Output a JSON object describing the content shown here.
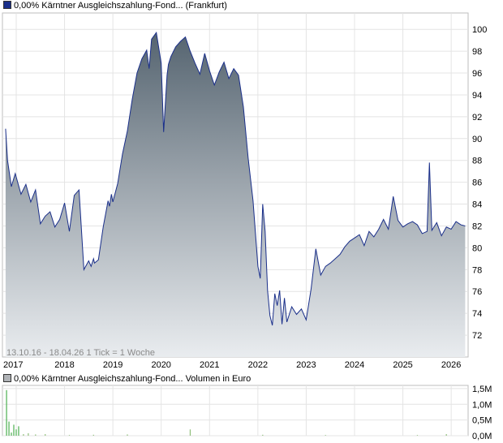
{
  "legend": {
    "price_label": "0,00% Kärntner Ausgleichszahlung-Fond... (Frankfurt)",
    "volume_label": "0,00% Kärntner Ausgleichszahlung-Fond... Volumen in Euro",
    "price_color": "#1a2f8a",
    "volume_color": "#b0b3b7"
  },
  "footer_note": "13.10.16 - 18.04.26   1 Tick = 1 Woche",
  "chart_data": [
    {
      "type": "area",
      "title": "0,00% Kärntner Ausgleichszahlung-Fond... (Frankfurt)",
      "x_ticks": [
        "2017",
        "2018",
        "2019",
        "2020",
        "2021",
        "2022",
        "2023",
        "2024",
        "2025",
        "2026"
      ],
      "y_ticks": [
        "72",
        "74",
        "76",
        "78",
        "80",
        "82",
        "84",
        "86",
        "88",
        "90",
        "92",
        "94",
        "96",
        "98",
        "100"
      ],
      "ylim": [
        70,
        101.5
      ],
      "grid": true,
      "x": [
        2016.78,
        2016.82,
        2016.9,
        2016.98,
        2017.1,
        2017.2,
        2017.3,
        2017.4,
        2017.5,
        2017.6,
        2017.7,
        2017.8,
        2017.9,
        2018.0,
        2018.1,
        2018.2,
        2018.3,
        2018.4,
        2018.5,
        2018.55,
        2018.6,
        2018.62,
        2018.7,
        2018.8,
        2018.9,
        2018.93,
        2018.97,
        2019.0,
        2019.1,
        2019.2,
        2019.3,
        2019.4,
        2019.5,
        2019.6,
        2019.7,
        2019.75,
        2019.8,
        2019.9,
        2020.0,
        2020.05,
        2020.12,
        2020.15,
        2020.2,
        2020.3,
        2020.4,
        2020.5,
        2020.6,
        2020.7,
        2020.8,
        2020.9,
        2021.0,
        2021.1,
        2021.2,
        2021.3,
        2021.4,
        2021.5,
        2021.6,
        2021.7,
        2021.8,
        2021.9,
        2022.0,
        2022.05,
        2022.1,
        2022.15,
        2022.2,
        2022.25,
        2022.3,
        2022.35,
        2022.4,
        2022.45,
        2022.5,
        2022.55,
        2022.6,
        2022.7,
        2022.8,
        2022.9,
        2023.0,
        2023.1,
        2023.2,
        2023.3,
        2023.4,
        2023.5,
        2023.6,
        2023.7,
        2023.8,
        2023.9,
        2024.0,
        2024.1,
        2024.2,
        2024.3,
        2024.4,
        2024.5,
        2024.6,
        2024.7,
        2024.8,
        2024.9,
        2025.0,
        2025.1,
        2025.2,
        2025.3,
        2025.4,
        2025.5,
        2025.55,
        2025.6,
        2025.7,
        2025.8,
        2025.9,
        2026.0,
        2026.1,
        2026.2,
        2026.29
      ],
      "series": [
        {
          "values": [
            90.9,
            88.0,
            85.6,
            86.8,
            84.9,
            85.8,
            84.2,
            85.3,
            82.2,
            82.9,
            83.3,
            81.9,
            82.6,
            84.1,
            81.5,
            84.8,
            85.3,
            78.0,
            78.8,
            78.3,
            79.0,
            78.6,
            78.9,
            81.9,
            84.3,
            83.8,
            84.9,
            84.2,
            85.9,
            88.6,
            90.7,
            93.6,
            96.0,
            97.3,
            98.1,
            96.4,
            99.1,
            99.7,
            96.9,
            90.6,
            95.8,
            96.8,
            97.5,
            98.4,
            98.9,
            99.3,
            98.0,
            96.9,
            95.9,
            97.8,
            96.2,
            94.9,
            96.1,
            97.0,
            95.5,
            96.4,
            95.8,
            92.9,
            88.2,
            84.3,
            78.3,
            77.2,
            84.0,
            81.5,
            76.1,
            73.8,
            72.9,
            75.8,
            74.7,
            76.1,
            73.0,
            75.4,
            73.2,
            74.6,
            73.9,
            74.4,
            73.4,
            76.2,
            79.9,
            77.5,
            78.3,
            78.6,
            79.0,
            79.4,
            80.1,
            80.6,
            80.9,
            81.2,
            80.2,
            81.5,
            81.0,
            81.7,
            82.6,
            81.7,
            84.7,
            82.5,
            81.9,
            82.2,
            82.4,
            82.1,
            81.3,
            81.5,
            87.8,
            81.6,
            82.3,
            81.1,
            81.9,
            81.7,
            82.4,
            82.1,
            82.0
          ]
        }
      ]
    },
    {
      "type": "bar",
      "title": "0,00% Kärntner Ausgleichszahlung-Fond... Volumen in Euro",
      "ylabel": "Volumen in Euro",
      "y_ticks": [
        "0,0M",
        "0,5M",
        "1,0M",
        "1,5M"
      ],
      "ylim": [
        0,
        1.6
      ],
      "grid": true,
      "x": [
        2016.8,
        2016.85,
        2016.9,
        2016.95,
        2017.0,
        2017.05,
        2017.15,
        2017.25,
        2017.4,
        2017.6,
        2018.1,
        2018.6,
        2019.3,
        2020.6,
        2022.1,
        2023.4,
        2025.3,
        2025.9
      ],
      "values": [
        1.45,
        0.45,
        0.1,
        0.35,
        0.2,
        0.3,
        0.05,
        0.08,
        0.04,
        0.05,
        0.02,
        0.03,
        0.04,
        0.2,
        0.03,
        0.02,
        0.02,
        0.05
      ]
    }
  ]
}
